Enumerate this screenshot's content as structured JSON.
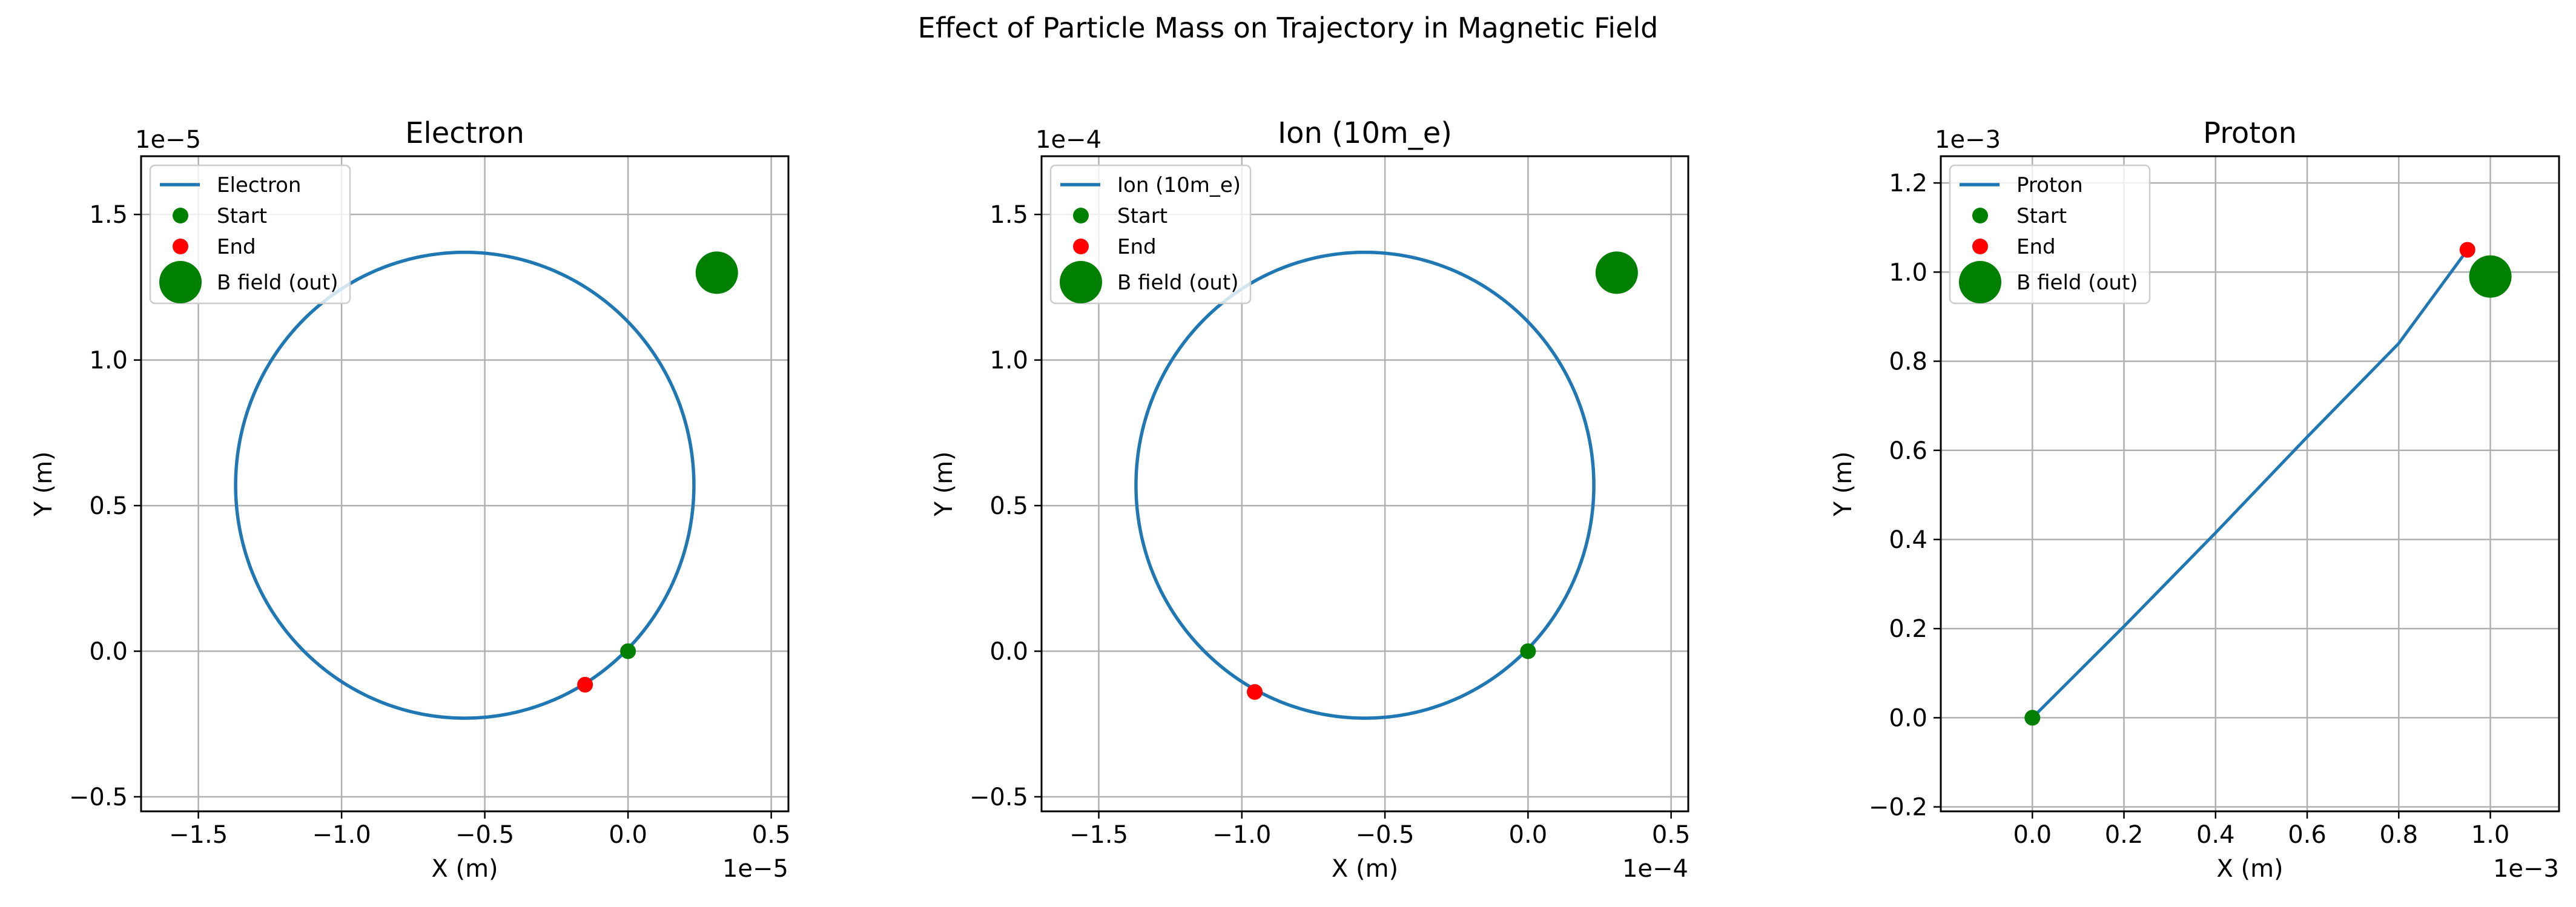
{
  "figure": {
    "suptitle": "Effect of Particle Mass on Trajectory in Magnetic Field"
  },
  "colors": {
    "trajectory": "#1f77b4",
    "start": "#008000",
    "end": "#ff0000",
    "b_field": "#008000",
    "grid": "#b0b0b0"
  },
  "chart_data": [
    {
      "type": "line",
      "title": "Electron",
      "xlabel": "X (m)",
      "ylabel": "Y (m)",
      "x_scale_label": "1e−5",
      "y_scale_label": "1e−5",
      "xlim": [
        -1.7,
        0.56
      ],
      "ylim": [
        -0.55,
        1.7
      ],
      "xticks": [
        -1.5,
        -1.0,
        -0.5,
        0.0,
        0.5
      ],
      "xtick_labels": [
        "−1.5",
        "−1.0",
        "−0.5",
        "0.0",
        "0.5"
      ],
      "yticks": [
        -0.5,
        0.0,
        0.5,
        1.0,
        1.5
      ],
      "ytick_labels": [
        "−0.5",
        "0.0",
        "0.5",
        "1.0",
        "1.5"
      ],
      "grid": true,
      "legend_position": "top-left",
      "series": [
        {
          "name": "Electron",
          "kind": "circle",
          "center": [
            -0.57,
            0.57
          ],
          "radius": 0.8,
          "start_angle_deg": -45,
          "sweep_deg": 360
        },
        {
          "name": "Start",
          "kind": "point",
          "x": 0.0,
          "y": 0.0
        },
        {
          "name": "End",
          "kind": "point",
          "x": -0.15,
          "y": -0.115
        },
        {
          "name": "B field (out)",
          "kind": "marker",
          "x": 0.31,
          "y": 1.3
        }
      ]
    },
    {
      "type": "line",
      "title": "Ion (10m_e)",
      "xlabel": "X (m)",
      "ylabel": "Y (m)",
      "x_scale_label": "1e−4",
      "y_scale_label": "1e−4",
      "xlim": [
        -1.7,
        0.56
      ],
      "ylim": [
        -0.55,
        1.7
      ],
      "xticks": [
        -1.5,
        -1.0,
        -0.5,
        0.0,
        0.5
      ],
      "xtick_labels": [
        "−1.5",
        "−1.0",
        "−0.5",
        "0.0",
        "0.5"
      ],
      "yticks": [
        -0.5,
        0.0,
        0.5,
        1.0,
        1.5
      ],
      "ytick_labels": [
        "−0.5",
        "0.0",
        "0.5",
        "1.0",
        "1.5"
      ],
      "grid": true,
      "legend_position": "top-left",
      "series": [
        {
          "name": "Ion (10m_e)",
          "kind": "circle",
          "center": [
            -0.57,
            0.57
          ],
          "radius": 0.8,
          "start_angle_deg": -45,
          "sweep_deg": 360
        },
        {
          "name": "Start",
          "kind": "point",
          "x": 0.0,
          "y": 0.0
        },
        {
          "name": "End",
          "kind": "point",
          "x": -0.955,
          "y": -0.14
        },
        {
          "name": "B field (out)",
          "kind": "marker",
          "x": 0.31,
          "y": 1.3
        }
      ]
    },
    {
      "type": "line",
      "title": "Proton",
      "xlabel": "X (m)",
      "ylabel": "Y (m)",
      "x_scale_label": "1e−3",
      "y_scale_label": "1e−3",
      "xlim": [
        -0.2,
        1.15
      ],
      "ylim": [
        -0.21,
        1.26
      ],
      "xticks": [
        0.0,
        0.2,
        0.4,
        0.6,
        0.8,
        1.0
      ],
      "xtick_labels": [
        "0.0",
        "0.2",
        "0.4",
        "0.6",
        "0.8",
        "1.0"
      ],
      "yticks": [
        -0.2,
        0.0,
        0.2,
        0.4,
        0.6,
        0.8,
        1.0,
        1.2
      ],
      "ytick_labels": [
        "−0.2",
        "0.0",
        "0.2",
        "0.4",
        "0.6",
        "0.8",
        "1.0",
        "1.2"
      ],
      "grid": true,
      "legend_position": "top-left",
      "series": [
        {
          "name": "Proton",
          "kind": "polyline",
          "x": [
            0.0,
            0.2,
            0.4,
            0.6,
            0.8,
            0.95
          ],
          "y": [
            0.0,
            0.205,
            0.415,
            0.63,
            0.84,
            1.05
          ]
        },
        {
          "name": "Start",
          "kind": "point",
          "x": 0.0,
          "y": 0.0
        },
        {
          "name": "End",
          "kind": "point",
          "x": 0.95,
          "y": 1.05
        },
        {
          "name": "B field (out)",
          "kind": "marker",
          "x": 1.0,
          "y": 0.99
        }
      ]
    }
  ]
}
